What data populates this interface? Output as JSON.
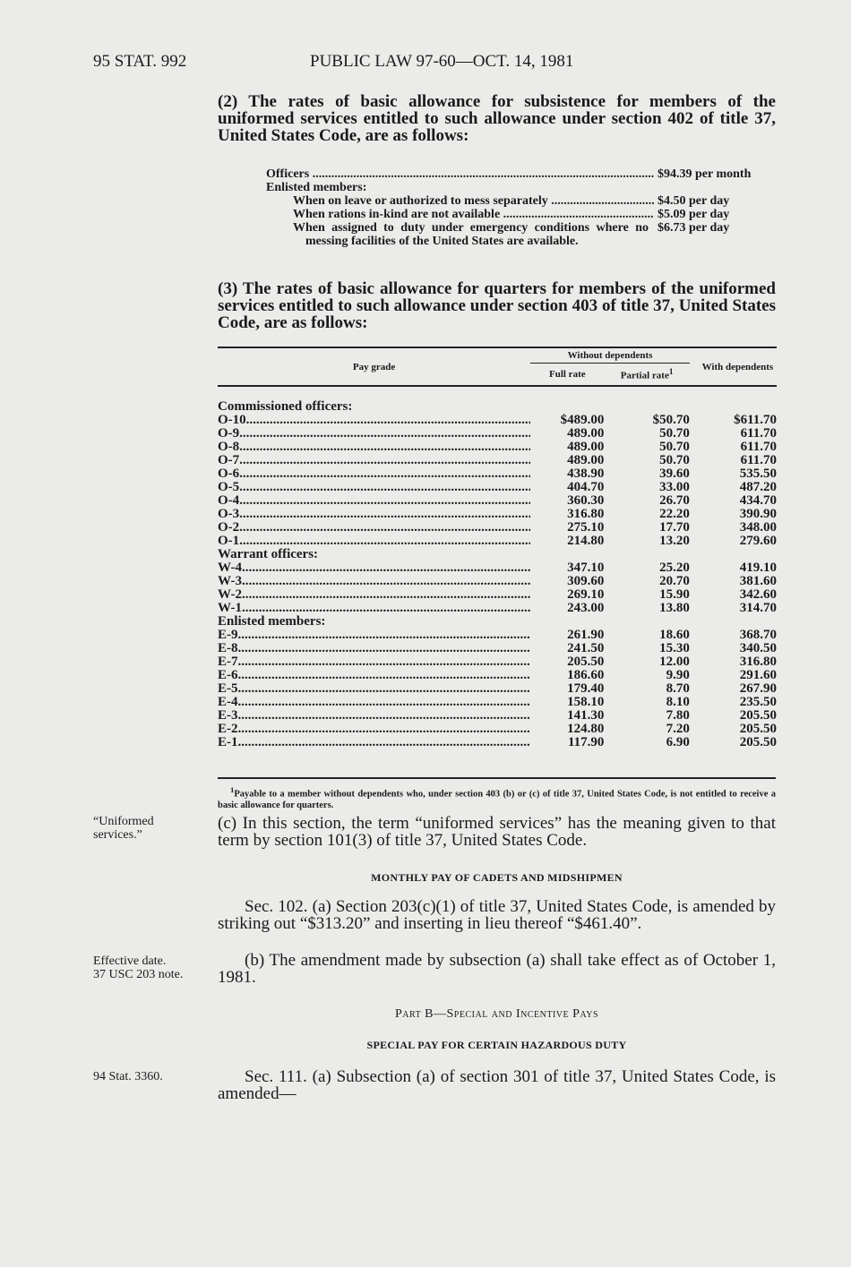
{
  "header": {
    "left": "95 STAT. 992",
    "center": "PUBLIC LAW 97-60—OCT. 14, 1981"
  },
  "para2": "(2) The rates of basic allowance for subsistence for members of the uniformed services entitled to such allowance under section 402 of title 37, United States Code, are as follows:",
  "subsistence": {
    "officers": {
      "label": "Officers",
      "value": "$94.39 per month"
    },
    "enlisted_heading": "Enlisted members:",
    "items": [
      {
        "label": "When on leave or authorized to mess separately",
        "value": "$4.50 per day"
      },
      {
        "label": "When rations in-kind are not available",
        "value": "$5.09 per day"
      },
      {
        "label": "When assigned to duty under emergency conditions where no messing facilities of the United States are available.",
        "value": "$6.73 per day"
      }
    ]
  },
  "para3": "(3) The rates of basic allowance for quarters for members of the uniformed services entitled to such allowance under section 403 of title 37, United States Code, are as follows:",
  "table": {
    "headers": {
      "pay_grade": "Pay grade",
      "without": "Without dependents",
      "full": "Full rate",
      "partial": "Partial rate",
      "partial_sup": "1",
      "with": "With dependents"
    },
    "groups": [
      {
        "title": "Commissioned officers:",
        "rows": [
          [
            "O-10",
            "$489.00",
            "$50.70",
            "$611.70"
          ],
          [
            "O-9",
            "489.00",
            "50.70",
            "611.70"
          ],
          [
            "O-8",
            "489.00",
            "50.70",
            "611.70"
          ],
          [
            "O-7",
            "489.00",
            "50.70",
            "611.70"
          ],
          [
            "O-6",
            "438.90",
            "39.60",
            "535.50"
          ],
          [
            "O-5",
            "404.70",
            "33.00",
            "487.20"
          ],
          [
            "O-4",
            "360.30",
            "26.70",
            "434.70"
          ],
          [
            "O-3",
            "316.80",
            "22.20",
            "390.90"
          ],
          [
            "O-2",
            "275.10",
            "17.70",
            "348.00"
          ],
          [
            "O-1",
            "214.80",
            "13.20",
            "279.60"
          ]
        ]
      },
      {
        "title": "Warrant officers:",
        "rows": [
          [
            "W-4",
            "347.10",
            "25.20",
            "419.10"
          ],
          [
            "W-3",
            "309.60",
            "20.70",
            "381.60"
          ],
          [
            "W-2",
            "269.10",
            "15.90",
            "342.60"
          ],
          [
            "W-1",
            "243.00",
            "13.80",
            "314.70"
          ]
        ]
      },
      {
        "title": "Enlisted members:",
        "rows": [
          [
            "E-9",
            "261.90",
            "18.60",
            "368.70"
          ],
          [
            "E-8",
            "241.50",
            "15.30",
            "340.50"
          ],
          [
            "E-7",
            "205.50",
            "12.00",
            "316.80"
          ],
          [
            "E-6",
            "186.60",
            "9.90",
            "291.60"
          ],
          [
            "E-5",
            "179.40",
            "8.70",
            "267.90"
          ],
          [
            "E-4",
            "158.10",
            "8.10",
            "235.50"
          ],
          [
            "E-3",
            "141.30",
            "7.80",
            "205.50"
          ],
          [
            "E-2",
            "124.80",
            "7.20",
            "205.50"
          ],
          [
            "E-1",
            "117.90",
            "6.90",
            "205.50"
          ]
        ]
      }
    ],
    "footnote_mark": "1",
    "footnote": "Payable to a member without dependents who, under section 403 (b) or (c) of title 37, United States Code, is not entitled to receive a basic allowance for quarters."
  },
  "margin_uniformed": "“Uniformed services.”",
  "para_c": "(c) In this section, the term “uniformed services” has the meaning given to that term by section 101(3) of title 37, United States Code.",
  "heading_cadets": "MONTHLY PAY OF CADETS AND MIDSHIPMEN",
  "sec102a": "Sec. 102. (a) Section 203(c)(1) of title 37, United States Code, is amended by striking out “$313.20” and inserting in lieu thereof “$461.40”.",
  "margin_effective": "Effective date.",
  "margin_note": "37 USC 203 note.",
  "sec102b": "(b) The amendment made by subsection (a) shall take effect as of October 1, 1981.",
  "part_b": "Part B—Special and Incentive Pays",
  "heading_hazard": "SPECIAL PAY FOR CERTAIN HAZARDOUS DUTY",
  "margin_stat": "94 Stat. 3360.",
  "sec111": "Sec. 111. (a) Subsection (a) of section 301 of title 37, United States Code, is amended—"
}
